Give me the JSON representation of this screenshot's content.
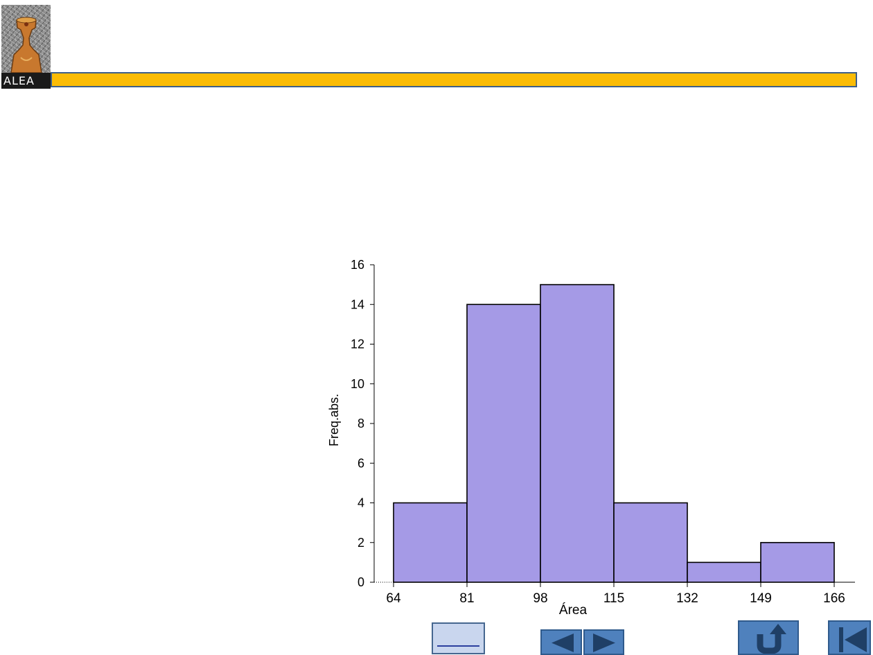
{
  "logo": {
    "label": "ALEA"
  },
  "colors": {
    "header_bar": "#fbbc05",
    "header_border": "#3e5f86",
    "bar_fill": "#a59ae6",
    "button_blue": "#4f81bd",
    "button_light": "#c9d6ee"
  },
  "chart_data": {
    "type": "bar",
    "title": "",
    "xlabel": "Área",
    "ylabel": "Freq.abs.",
    "bin_edges": [
      64,
      81,
      98,
      115,
      132,
      149,
      166
    ],
    "values": [
      4,
      14,
      15,
      4,
      1,
      2
    ],
    "xlim": [
      64,
      166
    ],
    "ylim": [
      0,
      16
    ],
    "x_ticks": [
      "64",
      "81",
      "98",
      "115",
      "132",
      "149",
      "166"
    ],
    "y_ticks": [
      "0",
      "2",
      "4",
      "6",
      "8",
      "10",
      "12",
      "14",
      "16"
    ],
    "grid": false,
    "legend": "none"
  },
  "navigation": {
    "buttons": [
      {
        "name": "blank-link-button",
        "icon": "underline"
      },
      {
        "name": "previous-button",
        "icon": "triangle-left-icon"
      },
      {
        "name": "next-button",
        "icon": "triangle-right-icon"
      },
      {
        "name": "return-button",
        "icon": "u-turn-arrow-icon"
      },
      {
        "name": "first-slide-button",
        "icon": "skip-to-start-icon"
      }
    ]
  }
}
